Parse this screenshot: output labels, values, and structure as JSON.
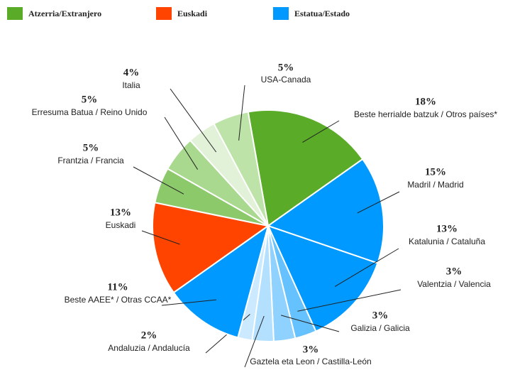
{
  "chart_data": {
    "type": "pie",
    "legend": [
      {
        "name": "Atzerria/Extranjero",
        "color": "#5aab27"
      },
      {
        "name": "Euskadi",
        "color": "#ff4400"
      },
      {
        "name": "Estatua/Estado",
        "color": "#0099ff"
      }
    ],
    "categories": [
      "Beste herrialde batzuk / Otros países*",
      "Madril / Madrid",
      "Katalunia / Cataluña",
      "Valentzia / Valencia",
      "Galizia / Galicia",
      "Gaztela eta Leon / Castilla-León",
      "Andaluzia / Andalucía",
      "Beste AAEE* / Otras CCAA*",
      "Euskadi",
      "Frantzia / Francia",
      "Erresuma Batua / Reino Unido",
      "Italia",
      "USA-Canada"
    ],
    "values": [
      18,
      15,
      13,
      3,
      3,
      3,
      2,
      11,
      13,
      5,
      5,
      4,
      5
    ],
    "value_labels": [
      "18%",
      "15%",
      "13%",
      "3%",
      "3%",
      "3%",
      "2%",
      "11%",
      "13%",
      "5%",
      "5%",
      "4%",
      "5%"
    ],
    "colors": [
      "#5aab27",
      "#0099ff",
      "#0099ff",
      "#66c2ff",
      "#8fd1ff",
      "#b3e0ff",
      "#cceaff",
      "#0099ff",
      "#ff4400",
      "#8cc96a",
      "#a9d98e",
      "#e2f2d8",
      "#bde3a8"
    ]
  }
}
